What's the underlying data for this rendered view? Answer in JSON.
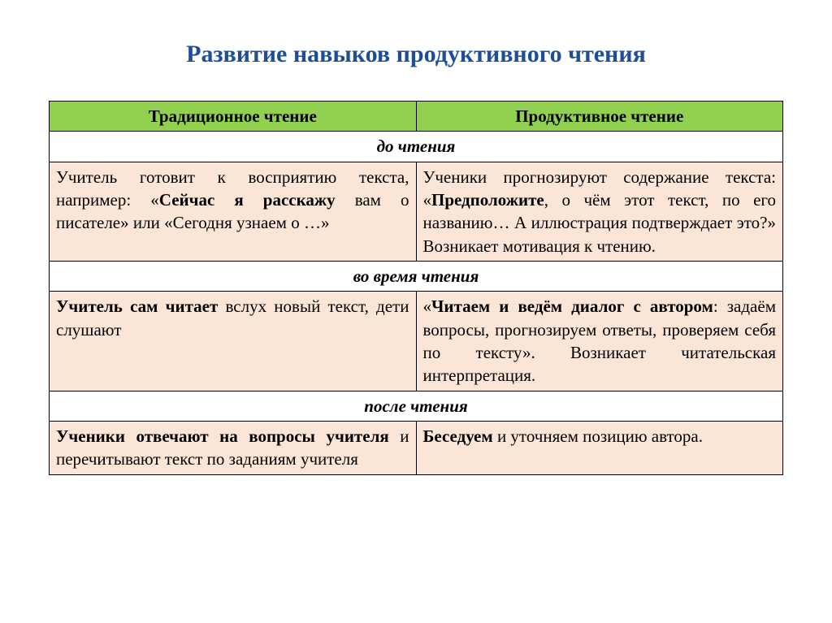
{
  "title": "Развитие навыков продуктивного чтения",
  "title_color": "#1f4e99",
  "header_bg": "#92d050",
  "cell_bg": "#fbe5d6",
  "columns": {
    "traditional": "Традиционное чтение",
    "productive": "Продуктивное чтение"
  },
  "sections": {
    "before": "до чтения",
    "during": "во время чтения",
    "after": "после чтения"
  },
  "rows": {
    "before": {
      "traditional": {
        "plain1": "Учитель готовит к восприятию текста, например: «",
        "bold1": "Сейчас я расскажу",
        "plain2": " вам о писателе» или «Сегодня узнаем о …»"
      },
      "productive": {
        "plain1": "Ученики прогнозируют содержание текста: «",
        "bold1": "Предположите",
        "plain2": ", о чём этот текст, по его названию… А иллюстрация подтверждает это?» Возникает мотивация к чтению."
      }
    },
    "during": {
      "traditional": {
        "bold1": "Учитель сам читает",
        "plain1": " вслух новый текст, дети слушают"
      },
      "productive": {
        "plain1": "«",
        "bold1": "Читаем и ведём диалог с автором",
        "plain2": ": задаём вопросы, прогнозируем ответы, проверяем себя по тексту». Возникает читательская интерпретация."
      }
    },
    "after": {
      "traditional": {
        "bold1": "Ученики отвечают на вопросы учителя",
        "plain1": " и перечитывают текст по заданиям учителя"
      },
      "productive": {
        "bold1": "Беседуем",
        "plain1": " и уточняем позицию автора."
      }
    }
  }
}
